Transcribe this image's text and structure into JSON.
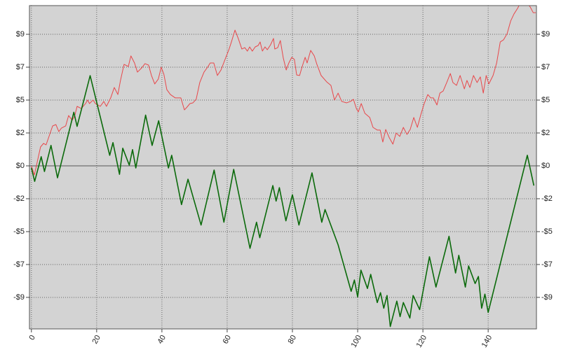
{
  "chart_data": {
    "type": "line",
    "xlim": [
      -0.6,
      154.8
    ],
    "xticks": [
      0,
      20,
      40,
      60,
      80,
      100,
      120,
      140
    ],
    "ylim": [
      -11.57,
      11.37
    ],
    "yticks": [
      {
        "value": -9.333,
        "label": "-$9"
      },
      {
        "value": -7,
        "label": "-$7"
      },
      {
        "value": -4.667,
        "label": "-$5"
      },
      {
        "value": -2.333,
        "label": "-$2"
      },
      {
        "value": 0,
        "label": "$0"
      },
      {
        "value": 2.333,
        "label": "$2"
      },
      {
        "value": 4.667,
        "label": "$5"
      },
      {
        "value": 7,
        "label": "$7"
      },
      {
        "value": 9.333,
        "label": "$9"
      }
    ],
    "grid": true,
    "background": "#d3d3d3",
    "series": [
      {
        "color": "#e8474a",
        "width": 1,
        "x": [
          0,
          0.9,
          2.8,
          3.7,
          4.5,
          6.5,
          7.5,
          8.4,
          9.2,
          10.5,
          11.4,
          12.5,
          13.3,
          14.0,
          15.3,
          16.6,
          17.2,
          17.8,
          18.9,
          19.6,
          21.1,
          22.2,
          23.0,
          24.3,
          25.4,
          26.5,
          27.3,
          28.4,
          29.7,
          30.5,
          31.6,
          32.5,
          33.8,
          34.8,
          35.9,
          36.8,
          37.8,
          38.9,
          39.8,
          40.6,
          41.5,
          42.6,
          44.1,
          45.8,
          46.9,
          47.7,
          48.6,
          49.5,
          50.5,
          51.6,
          52.9,
          54.0,
          54.8,
          55.9,
          57.0,
          58.1,
          59.6,
          60.6,
          61.3,
          62.4,
          63.4,
          64.5,
          65.4,
          66.2,
          66.9,
          67.7,
          68.6,
          69.5,
          70.1,
          70.8,
          71.6,
          72.3,
          73.3,
          74.2,
          74.6,
          75.5,
          76.3,
          77.2,
          78.1,
          78.9,
          79.8,
          80.6,
          81.3,
          82.2,
          83.0,
          83.9,
          84.5,
          85.6,
          86.7,
          87.5,
          88.8,
          90.5,
          91.8,
          92.9,
          94.0,
          95.1,
          96.6,
          97.8,
          98.7,
          99.6,
          100.2,
          101.1,
          102.2,
          103.7,
          104.7,
          106.0,
          106.9,
          107.7,
          108.6,
          109.7,
          110.8,
          111.8,
          112.9,
          114.0,
          115.1,
          116.1,
          117.2,
          118.3,
          119.4,
          120.4,
          121.5,
          122.4,
          123.2,
          124.3,
          125.2,
          126.2,
          127.3,
          128.4,
          129.2,
          130.3,
          131.4,
          132.7,
          133.5,
          134.4,
          135.5,
          136.6,
          137.6,
          138.5,
          139.4,
          140.2,
          141.5,
          142.6,
          143.7,
          144.7,
          145.8,
          146.9,
          147.9,
          149.0,
          149.8,
          151.0,
          152.0,
          152.9,
          153.8,
          154.6
        ],
        "values": [
          0,
          -0.65,
          1.34,
          1.59,
          1.49,
          2.83,
          2.93,
          2.43,
          2.68,
          2.83,
          3.57,
          3.23,
          3.57,
          4.22,
          4.07,
          4.42,
          4.67,
          4.42,
          4.67,
          4.42,
          4.22,
          4.57,
          4.22,
          4.82,
          5.56,
          5.06,
          6.06,
          7.2,
          7.05,
          7.8,
          7.3,
          6.65,
          6.95,
          7.25,
          7.15,
          6.41,
          5.81,
          6.16,
          7.0,
          6.5,
          5.41,
          5.06,
          4.82,
          4.82,
          3.97,
          4.17,
          4.42,
          4.47,
          4.72,
          5.91,
          6.65,
          7.0,
          7.3,
          7.3,
          6.41,
          6.8,
          7.7,
          8.29,
          8.79,
          9.63,
          9.04,
          8.29,
          8.39,
          8.14,
          8.44,
          8.14,
          8.44,
          8.54,
          8.79,
          8.14,
          8.44,
          8.24,
          8.59,
          9.04,
          8.29,
          8.39,
          8.89,
          7.65,
          6.8,
          7.3,
          7.7,
          7.55,
          6.45,
          6.41,
          7.05,
          7.7,
          7.3,
          8.19,
          7.8,
          7.2,
          6.41,
          5.96,
          5.71,
          4.67,
          5.16,
          4.57,
          4.47,
          4.57,
          4.72,
          4.07,
          3.83,
          4.42,
          3.73,
          3.43,
          2.73,
          2.54,
          2.54,
          1.69,
          2.58,
          1.99,
          1.54,
          2.33,
          2.09,
          2.73,
          2.23,
          2.58,
          3.43,
          2.73,
          3.67,
          4.42,
          5.06,
          4.82,
          4.82,
          4.32,
          5.16,
          5.31,
          5.91,
          6.55,
          5.91,
          5.71,
          6.41,
          5.46,
          6.06,
          5.56,
          6.41,
          5.91,
          6.31,
          5.16,
          6.41,
          5.81,
          6.41,
          7.3,
          8.79,
          8.94,
          9.38,
          10.28,
          10.77,
          11.17,
          11.52,
          11.77,
          11.52,
          11.27,
          10.87,
          10.87
        ]
      },
      {
        "color": "#0b6a0b",
        "width": 1.6,
        "x": [
          0,
          1,
          3,
          4,
          6,
          8,
          13,
          14,
          18,
          24,
          25,
          27,
          28,
          30,
          31,
          32,
          35,
          37,
          39,
          42,
          43,
          46,
          48,
          52,
          56,
          59,
          62,
          67,
          69,
          70,
          74,
          75,
          76,
          78,
          80,
          82,
          86,
          89,
          90,
          94,
          98,
          99,
          100,
          101,
          103,
          104,
          106,
          107,
          108,
          109,
          110,
          112,
          113,
          114,
          116,
          117,
          119,
          122,
          124,
          128,
          130,
          131,
          133,
          134,
          136,
          137,
          138,
          139,
          140,
          152,
          154
        ],
        "values": [
          -0.15,
          -1.1,
          0.65,
          -0.4,
          1.45,
          -0.85,
          3.8,
          2.8,
          6.4,
          0.75,
          1.65,
          -0.6,
          1.25,
          0.05,
          1.15,
          -0.15,
          3.6,
          1.45,
          3.2,
          -0.15,
          0.75,
          -2.75,
          -0.95,
          -4.2,
          -0.3,
          -4.0,
          -0.25,
          -5.85,
          -4.0,
          -5.1,
          -1.4,
          -2.5,
          -1.55,
          -3.9,
          -2.05,
          -4.2,
          -0.5,
          -4.0,
          -3.1,
          -5.6,
          -8.9,
          -8.1,
          -9.3,
          -7.4,
          -8.7,
          -7.7,
          -9.7,
          -9.0,
          -10.1,
          -9.2,
          -11.4,
          -9.6,
          -10.7,
          -9.7,
          -10.8,
          -9.2,
          -10.2,
          -6.45,
          -8.6,
          -5.0,
          -7.6,
          -6.35,
          -8.6,
          -7.1,
          -8.35,
          -7.85,
          -10.1,
          -9.1,
          -10.4,
          0.75,
          -1.4
        ]
      }
    ]
  }
}
